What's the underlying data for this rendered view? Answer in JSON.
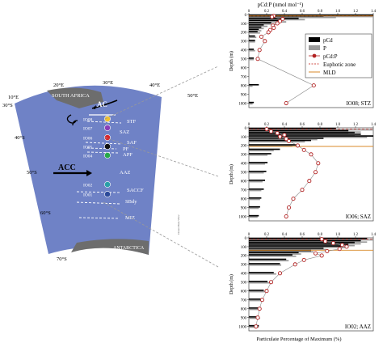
{
  "colors": {
    "ocean": "#6f82c6",
    "ocean_dark": "#5b6eb8",
    "land": "#6d6d6d",
    "pcd_bar": "#000000",
    "p_bar": "#9a9a9a",
    "ratio": "#b22222",
    "euphotic": "#d0504a",
    "mld": "#d98a2a",
    "station_colors": {
      "IO08": "#f2c22b",
      "IO07": "#8a3fb8",
      "IO06": "#d9262b",
      "IO05": "#111111",
      "IO04": "#27a84a",
      "IO02": "#2aa0a8",
      "IO01": "#2c4a9a"
    }
  },
  "map": {
    "longitudes": [
      "10°E",
      "20°E",
      "30°E",
      "40°E",
      "50°E"
    ],
    "latitudes": [
      "30°S",
      "40°S",
      "50°S",
      "60°S",
      "70°S"
    ],
    "land_labels": {
      "africa": "SOUTH AFRICA",
      "antarctica": "ANTARCTICA"
    },
    "currents": {
      "ac": "AC",
      "acc": "ACC"
    },
    "fronts": [
      "STF",
      "SAF",
      "PF",
      "APF",
      "SACCF",
      "SBdy",
      "MIZ"
    ],
    "zones": [
      "SAZ",
      "AAZ"
    ],
    "stations": [
      "IO08",
      "IO07",
      "IO06",
      "IO05",
      "IO04",
      "IO02",
      "IO01"
    ],
    "credit": "Ocean Data View"
  },
  "panels": {
    "top_axis_label": "pCd:P (nmol mol⁻¹)",
    "y_axis_label": "Depth (m)",
    "bottom_axis_label": "Particulate Percentage of Maximum (%)",
    "legend": [
      "pCd",
      "P",
      "pCd:P",
      "Euphotic zone",
      "MLD"
    ]
  },
  "chart_data": [
    {
      "type": "bar",
      "panel": "IO08; STZ",
      "xlabel": "Particulate Percentage of Maximum (%)",
      "ylabel": "Depth (m)",
      "top_xlabel": "pCd:P (nmol mol⁻¹)",
      "pct_lim": [
        0,
        100
      ],
      "ratio_lim": [
        0,
        1.4
      ],
      "ratio_ticks": [
        "0",
        "0.2",
        "0.4",
        "0.6",
        "0.8",
        "1.0",
        "1.2",
        "1.4"
      ],
      "depth_lim": [
        0,
        1050
      ],
      "depth_ticks": [
        0,
        100,
        200,
        300,
        400,
        500,
        600,
        700,
        800,
        900,
        1000
      ],
      "euphotic_depth": 15,
      "mld": 15,
      "depths": [
        15,
        25,
        50,
        75,
        100,
        125,
        150,
        175,
        200,
        250,
        300,
        400,
        500,
        800,
        1000
      ],
      "pcd": [
        100,
        60,
        40,
        25,
        18,
        12,
        10,
        8,
        7,
        5,
        5,
        4,
        4,
        8,
        4
      ],
      "p": [
        100,
        70,
        45,
        30,
        22,
        15,
        12,
        10,
        9,
        6,
        5,
        5,
        4,
        3,
        3
      ],
      "ratio": [
        0.28,
        0.26,
        0.38,
        0.35,
        0.32,
        0.27,
        0.28,
        0.24,
        0.22,
        0.14,
        0.18,
        0.12,
        0.1,
        0.73,
        0.42
      ]
    },
    {
      "type": "bar",
      "panel": "IO06; SAZ",
      "xlabel": "Particulate Percentage of Maximum (%)",
      "ylabel": "Depth (m)",
      "pct_lim": [
        0,
        100
      ],
      "ratio_lim": [
        0,
        1.4
      ],
      "ratio_ticks": [
        "0",
        "0.2",
        "0.4",
        "0.6",
        "0.8",
        "1.0",
        "1.2",
        "1.4"
      ],
      "depth_lim": [
        0,
        1050
      ],
      "depth_ticks": [
        0,
        100,
        200,
        300,
        400,
        500,
        600,
        700,
        800,
        900,
        1000
      ],
      "euphotic_depth": 15,
      "mld": 210,
      "depths": [
        15,
        40,
        60,
        80,
        100,
        125,
        150,
        200,
        250,
        300,
        400,
        500,
        600,
        700,
        800,
        900,
        1000
      ],
      "pcd": [
        70,
        80,
        85,
        90,
        100,
        60,
        50,
        40,
        25,
        18,
        15,
        14,
        13,
        12,
        10,
        9,
        8
      ],
      "p": [
        100,
        90,
        80,
        85,
        95,
        55,
        45,
        35,
        20,
        15,
        13,
        12,
        11,
        10,
        9,
        8,
        7
      ],
      "ratio": [
        0.2,
        0.25,
        0.32,
        0.4,
        0.35,
        0.42,
        0.45,
        0.55,
        0.62,
        0.7,
        0.78,
        0.75,
        0.68,
        0.6,
        0.5,
        0.45,
        0.42
      ]
    },
    {
      "type": "bar",
      "panel": "IO02; AAZ",
      "xlabel": "Particulate Percentage of Maximum (%)",
      "ylabel": "Depth (m)",
      "pct_lim": [
        0,
        100
      ],
      "ratio_lim": [
        0,
        1.4
      ],
      "ratio_ticks": [
        "0",
        "0.2",
        "0.4",
        "0.6",
        "0.8",
        "1.0",
        "1.2",
        "1.4"
      ],
      "depth_lim": [
        0,
        1050
      ],
      "depth_ticks": [
        0,
        100,
        200,
        300,
        400,
        500,
        600,
        700,
        800,
        900,
        1000
      ],
      "euphotic_depth": 15,
      "mld": 140,
      "depths": [
        15,
        40,
        60,
        80,
        100,
        125,
        150,
        175,
        200,
        250,
        300,
        400,
        500,
        600,
        700,
        800,
        900,
        1000
      ],
      "pcd": [
        95,
        90,
        85,
        80,
        75,
        60,
        50,
        40,
        35,
        30,
        25,
        20,
        15,
        12,
        10,
        9,
        8,
        8
      ],
      "p": [
        100,
        95,
        90,
        85,
        80,
        62,
        52,
        42,
        38,
        32,
        26,
        22,
        17,
        14,
        12,
        10,
        9,
        8
      ],
      "ratio": [
        0.82,
        0.86,
        0.95,
        1.05,
        1.1,
        1.02,
        0.88,
        0.75,
        0.82,
        0.62,
        0.52,
        0.35,
        0.25,
        0.2,
        0.15,
        0.12,
        0.1,
        0.08
      ]
    }
  ]
}
